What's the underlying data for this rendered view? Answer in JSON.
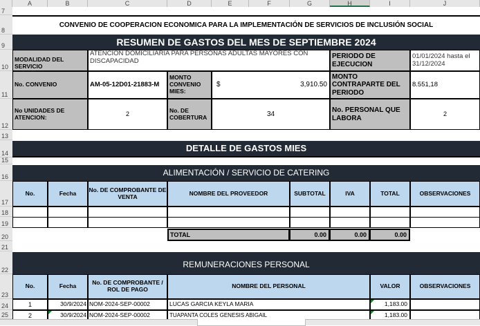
{
  "columns": [
    "A",
    "B",
    "C",
    "D",
    "E",
    "F",
    "G",
    "H",
    "I",
    "J"
  ],
  "rows": [
    "7",
    "8",
    "9",
    "10",
    "11",
    "12",
    "13",
    "14",
    "15",
    "16",
    "17",
    "18",
    "19",
    "20",
    "21",
    "22",
    "23",
    "24",
    "25"
  ],
  "title": "CONVENIO DE COOPERACION ECONOMICA PARA LA IMPLEMENTACIÓN DE SERVICIOS DE INCLUSIÓN SOCIAL",
  "resumen": "RESUMEN DE GASTOS  DEL MES DE SEPTIEMBRE 2024",
  "info": {
    "modalidad_label": "MODALIDAD DEL SERVICIO",
    "modalidad_value": "ATENCIÓN DOMICILIARIA PARA PERSONAS ADULTAS MAYORES CON DISCAPACIDAD",
    "periodo_label": "PERIODO DE EJECUCION",
    "periodo_value": "01/01/2024 hasta el 31/12/2024",
    "convenio_label": "No. CONVENIO",
    "convenio_value": "AM-05-12D01-21883-M",
    "monto_label": "MONTO CONVENIO MIES:",
    "monto_currency": "$",
    "monto_value": "3,910.50",
    "contraparte_label": "MONTO CONTRAPARTE DEL PERIODO",
    "contraparte_value": "8.551,18",
    "unidades_label": "No UNIDADES DE ATENCION:",
    "unidades_value": "2",
    "cobertura_label": "No. DE COBERTURA",
    "cobertura_value": "34",
    "personal_label": "No. PERSONAL QUE LABORA",
    "personal_value": "2"
  },
  "detalle": "DETALLE DE GASTOS  MIES",
  "alimentacion": {
    "title": "ALIMENTACIÓN / SERVICIO DE CATERING",
    "headers": [
      "No.",
      "Fecha",
      "No. DE COMPROBANTE DE VENTA",
      "NOMBRE DEL PROVEEDOR",
      "SUBTOTAL",
      "IVA",
      "TOTAL",
      "OBSERVACIONES"
    ],
    "total_label": "TOTAL",
    "subtotal": "0.00",
    "iva": "0.00",
    "total": "0.00"
  },
  "remuneraciones": {
    "title": "REMUNERACIONES PERSONAL",
    "headers": [
      "No.",
      "Fecha",
      "No. DE COMPROBANTE / ROL DE PAGO",
      "NOMBRE DEL PERSONAL",
      "VALOR",
      "OBSERVACIONES"
    ],
    "rows": [
      {
        "no": "1",
        "fecha": "30/9/2024",
        "comprobante": "NOM-2024-SEP-00002",
        "nombre": "LUCAS GARCIA KEYLA MARIA",
        "valor": "1,183.00"
      },
      {
        "no": "2",
        "fecha": "30/9/2024",
        "comprobante": "NOM-2024-SEP-00002",
        "nombre": "TUAPANTA COLES GENESIS ABIGAIL",
        "valor": "1,183.00"
      }
    ]
  }
}
